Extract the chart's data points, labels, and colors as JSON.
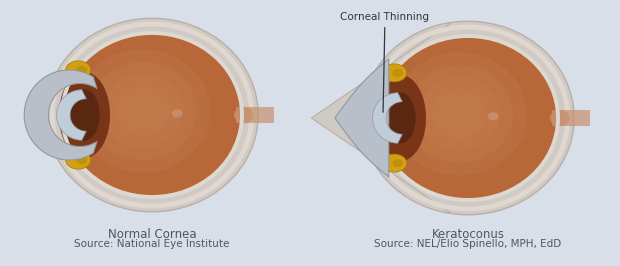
{
  "bg_color": "#d8dfe8",
  "title_left": "Normal Cornea",
  "source_left": "Source: National Eye Institute",
  "title_right": "Keratoconus",
  "source_right": "Source: NEL/Elio Spinello, MPH, EdD",
  "annotation_text": "Corneal Thinning",
  "eye_fill_outer": "#c8855a",
  "eye_fill_mid": "#b86838",
  "eye_fill_inner": "#a05530",
  "eye_fill_center": "#c07845",
  "sclera_outer": "#d0cac4",
  "sclera_inner": "#e0d8d0",
  "sclera_edge": "#b8b0a8",
  "cornea_color": "#b8bfc8",
  "cornea_edge": "#9098a0",
  "iris_dark": "#7a3518",
  "ciliary_color": "#d4a010",
  "ciliary_edge": "#a07808",
  "lens_color": "#c0ccd8",
  "lens_edge": "#9098a8",
  "nerve_color": "#c89070",
  "retina_line": "#b87858",
  "text_color": "#555560",
  "title_fontsize": 8.5,
  "source_fontsize": 7.5
}
